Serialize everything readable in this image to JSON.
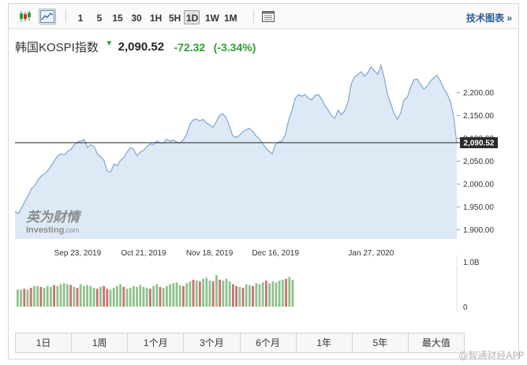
{
  "toolbar": {
    "chart_type_icons": [
      "candlestick-icon",
      "area-chart-icon"
    ],
    "intervals": [
      "1",
      "5",
      "15",
      "30",
      "1H",
      "5H",
      "1D",
      "1W",
      "1M"
    ],
    "active_interval": "1D",
    "settings_icon": "sheet-icon",
    "tech_link": "技术图表 »"
  },
  "header": {
    "name": "韩国KOSPI指数",
    "arrow": "▼",
    "price": "2,090.52",
    "change": "-72.32",
    "change_pct": "(-3.34%)"
  },
  "chart_data": {
    "type": "area",
    "title": "韩国KOSPI指数",
    "xlabel": "",
    "ylabel": "",
    "ylim": [
      1880,
      2270
    ],
    "yticks": [
      "2,200.00",
      "2,150.00",
      "2,100.00",
      "2,050.00",
      "2,000.00",
      "1,950.00",
      "1,900.00"
    ],
    "ytick_values": [
      2200,
      2150,
      2100,
      2050,
      2000,
      1950,
      1900
    ],
    "xticks": [
      "Sep 23, 2019",
      "Oct 21, 2019",
      "Nov 18, 2019",
      "Dec 16, 2019",
      "Jan 27, 2020"
    ],
    "xtick_index": [
      19,
      39,
      59,
      79,
      108
    ],
    "current_value": 2090.52,
    "current_label": "2,090.52",
    "line_color": "#7fa6cf",
    "fill_color": "#dde9f5",
    "series": [
      {
        "values": [
          1940,
          1935,
          1948,
          1962,
          1975,
          1990,
          1996,
          2010,
          2018,
          2022,
          2030,
          2040,
          2052,
          2062,
          2066,
          2064,
          2072,
          2076,
          2086,
          2092,
          2094,
          2098,
          2080,
          2086,
          2082,
          2066,
          2060,
          2052,
          2028,
          2026,
          2044,
          2040,
          2052,
          2058,
          2070,
          2080,
          2076,
          2062,
          2070,
          2074,
          2082,
          2088,
          2086,
          2094,
          2090,
          2090,
          2098,
          2094,
          2096,
          2092,
          2090,
          2096,
          2108,
          2130,
          2140,
          2142,
          2138,
          2142,
          2134,
          2130,
          2124,
          2136,
          2150,
          2154,
          2146,
          2128,
          2106,
          2102,
          2106,
          2114,
          2118,
          2122,
          2116,
          2106,
          2100,
          2090,
          2080,
          2072,
          2066,
          2086,
          2092,
          2094,
          2108,
          2140,
          2160,
          2188,
          2196,
          2192,
          2196,
          2188,
          2184,
          2194,
          2196,
          2186,
          2172,
          2162,
          2150,
          2144,
          2162,
          2152,
          2160,
          2180,
          2220,
          2234,
          2240,
          2246,
          2236,
          2244,
          2256,
          2248,
          2240,
          2260,
          2232,
          2196,
          2176,
          2154,
          2142,
          2156,
          2184,
          2190,
          2212,
          2228,
          2230,
          2218,
          2208,
          2214,
          2226,
          2232,
          2238,
          2226,
          2210,
          2198,
          2182,
          2150,
          2090
        ]
      }
    ],
    "volume": {
      "ylabels": [
        "1.0B",
        "0"
      ],
      "up_color": "#8fc18f",
      "down_color": "#c97272",
      "values": [
        0.38,
        0.38,
        0.4,
        0.38,
        0.42,
        0.46,
        0.46,
        0.44,
        0.42,
        0.46,
        0.44,
        0.48,
        0.46,
        0.5,
        0.52,
        0.5,
        0.48,
        0.44,
        0.42,
        0.5,
        0.46,
        0.48,
        0.46,
        0.42,
        0.4,
        0.44,
        0.46,
        0.4,
        0.38,
        0.42,
        0.46,
        0.5,
        0.44,
        0.4,
        0.42,
        0.46,
        0.44,
        0.48,
        0.44,
        0.42,
        0.4,
        0.46,
        0.5,
        0.44,
        0.42,
        0.46,
        0.5,
        0.52,
        0.54,
        0.48,
        0.46,
        0.52,
        0.56,
        0.6,
        0.58,
        0.56,
        0.62,
        0.64,
        0.58,
        0.56,
        0.7,
        0.6,
        0.58,
        0.62,
        0.56,
        0.5,
        0.46,
        0.44,
        0.42,
        0.5,
        0.48,
        0.46,
        0.52,
        0.5,
        0.54,
        0.58,
        0.52,
        0.56,
        0.54,
        0.58,
        0.6,
        0.62,
        0.66,
        0.6
      ],
      "colors": [
        "u",
        "u",
        "d",
        "u",
        "d",
        "u",
        "u",
        "d",
        "u",
        "u",
        "u",
        "d",
        "u",
        "u",
        "u",
        "u",
        "d",
        "u",
        "d",
        "u",
        "u",
        "u",
        "u",
        "u",
        "d",
        "u",
        "d",
        "d",
        "u",
        "u",
        "u",
        "u",
        "d",
        "u",
        "u",
        "u",
        "u",
        "u",
        "u",
        "u",
        "d",
        "u",
        "u",
        "d",
        "u",
        "u",
        "u",
        "u",
        "u",
        "u",
        "d",
        "u",
        "u",
        "d",
        "u",
        "d",
        "u",
        "u",
        "u",
        "d",
        "u",
        "d",
        "u",
        "u",
        "u",
        "d",
        "d",
        "u",
        "d",
        "u",
        "u",
        "d",
        "u",
        "u",
        "u",
        "d",
        "u",
        "u",
        "u",
        "u",
        "u",
        "d",
        "u",
        "u"
      ]
    }
  },
  "watermark": {
    "cn": "英为财情",
    "en": "Investing",
    "suffix": ".com",
    "source": "@智通财经APP"
  },
  "ranges": [
    "1日",
    "1周",
    "1个月",
    "3个月",
    "6个月",
    "1年",
    "5年",
    "最大值"
  ]
}
